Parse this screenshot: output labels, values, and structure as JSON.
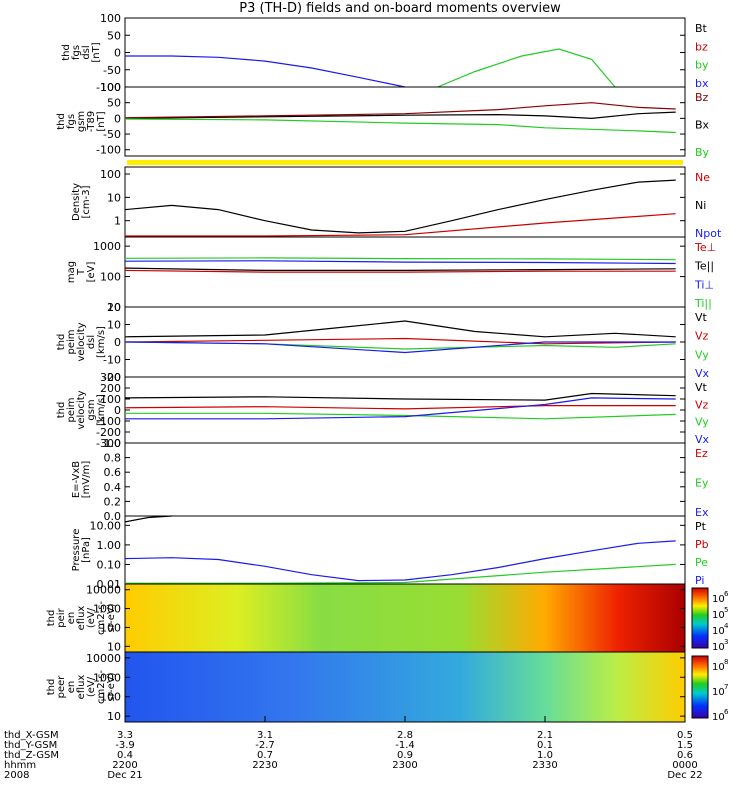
{
  "title": "P3 (TH-D) fields and on-board moments overview",
  "colors": {
    "black": "#000000",
    "red": "#cc0000",
    "green": "#22cc22",
    "blue": "#1a1aee",
    "darkred": "#8b0000",
    "yellow": "#ffee00"
  },
  "panels": [
    {
      "id": "fgs-dsl",
      "ylabel": [
        "thd",
        "fgs",
        "dsl",
        "[nT]"
      ],
      "yticks": [
        "100",
        "50",
        "0",
        "-50",
        "-100"
      ],
      "ylim": [
        -100,
        100
      ],
      "legend": [
        {
          "label": "Bt",
          "color": "black"
        },
        {
          "label": "bz",
          "color": "red"
        },
        {
          "label": "by",
          "color": "green"
        },
        {
          "label": "bx",
          "color": "blue"
        }
      ]
    },
    {
      "id": "fgs-gsm",
      "ylabel": [
        "thd",
        "fgs",
        "gsm",
        "-T89",
        "[nT]"
      ],
      "yticks": [
        "100",
        "50",
        "0",
        "-50",
        "-100"
      ],
      "ylim": [
        -120,
        100
      ],
      "legend": [
        {
          "label": "Bz",
          "color": "darkred"
        },
        {
          "label": "Bx",
          "color": "black"
        },
        {
          "label": "By",
          "color": "green"
        }
      ]
    },
    {
      "id": "density",
      "ylabel": [
        "Density",
        "[cm-3]"
      ],
      "yticks": [
        "100",
        "10",
        "1"
      ],
      "ylim": [
        0.2,
        200
      ],
      "scale": "log",
      "legend": [
        {
          "label": "Ne",
          "color": "red"
        },
        {
          "label": "Ni",
          "color": "black"
        },
        {
          "label": "Npot",
          "color": "blue"
        }
      ]
    },
    {
      "id": "temperature",
      "ylabel": [
        "mag",
        "T",
        "[eV]"
      ],
      "yticks": [
        "1000",
        "100",
        "10"
      ],
      "ylim": [
        10,
        2000
      ],
      "scale": "log",
      "legend": [
        {
          "label": "Te⊥",
          "color": "red"
        },
        {
          "label": "Te||",
          "color": "black"
        },
        {
          "label": "Ti⊥",
          "color": "blue"
        },
        {
          "label": "Ti||",
          "color": "green"
        }
      ]
    },
    {
      "id": "velocity-dsl",
      "ylabel": [
        "thd",
        "peim",
        "velocity",
        "dsl",
        "[km/s]"
      ],
      "yticks": [
        "20",
        "10",
        "0",
        "-10",
        "-20"
      ],
      "ylim": [
        -20,
        20
      ],
      "legend": [
        {
          "label": "Vt",
          "color": "black"
        },
        {
          "label": "Vz",
          "color": "red"
        },
        {
          "label": "Vy",
          "color": "green"
        },
        {
          "label": "Vx",
          "color": "blue"
        }
      ]
    },
    {
      "id": "velocity-gsm",
      "ylabel": [
        "thd",
        "peim",
        "velocity",
        "gsm",
        "[km/s]"
      ],
      "yticks": [
        "300",
        "200",
        "100",
        "0",
        "-100",
        "-200",
        "-300"
      ],
      "ylim": [
        -300,
        300
      ],
      "legend": [
        {
          "label": "Vt",
          "color": "black"
        },
        {
          "label": "Vz",
          "color": "red"
        },
        {
          "label": "Vy",
          "color": "green"
        },
        {
          "label": "Vx",
          "color": "blue"
        }
      ]
    },
    {
      "id": "efield",
      "ylabel": [
        "E=-VxB",
        "[mV/m]"
      ],
      "yticks": [
        "1.0",
        "0.8",
        "0.6",
        "0.4",
        "0.2",
        "0.0"
      ],
      "ylim": [
        0,
        1
      ],
      "legend": [
        {
          "label": "Ez",
          "color": "red"
        },
        {
          "label": "Ey",
          "color": "green"
        },
        {
          "label": "Ex",
          "color": "blue"
        }
      ]
    },
    {
      "id": "pressure",
      "ylabel": [
        "Pressure",
        "[nPa]"
      ],
      "yticks": [
        "10.00",
        "1.00",
        "0.10",
        "0.01"
      ],
      "ylim": [
        0.01,
        30
      ],
      "scale": "log",
      "legend": [
        {
          "label": "Pt",
          "color": "black"
        },
        {
          "label": "Pb",
          "color": "red"
        },
        {
          "label": "Pe",
          "color": "green"
        },
        {
          "label": "Pi",
          "color": "blue"
        }
      ]
    },
    {
      "id": "peir-eflux",
      "ylabel": [
        "thd",
        "peir",
        "en",
        "eflux",
        "(eV/",
        "cm2-s-",
        "sr-eV)"
      ],
      "yticks": [
        "10000",
        "1000",
        "100",
        "10"
      ],
      "ylim": [
        5,
        20000
      ],
      "scale": "log",
      "colorbar": [
        "10",
        "6",
        "10",
        "5",
        "10",
        "4",
        "10",
        "3"
      ]
    },
    {
      "id": "peer-eflux",
      "ylabel": [
        "thd",
        "peer",
        "en",
        "eflux",
        "(eV/",
        "cm2-s-",
        "sr-eV)"
      ],
      "yticks": [
        "10000",
        "1000",
        "100",
        "10"
      ],
      "ylim": [
        5,
        20000
      ],
      "scale": "log",
      "colorbar": [
        "10",
        "8",
        "10",
        "7",
        "10",
        "6"
      ]
    }
  ],
  "x_axis": {
    "rows": [
      {
        "label": "thd_X-GSM",
        "values": [
          "3.3",
          "3.1",
          "2.8",
          "2.1",
          "0.5"
        ]
      },
      {
        "label": "thd_Y-GSM",
        "values": [
          "-3.9",
          "-2.7",
          "-1.4",
          "0.1",
          "1.5"
        ]
      },
      {
        "label": "thd_Z-GSM",
        "values": [
          "0.4",
          "0.7",
          "0.9",
          "1.0",
          "0.6"
        ]
      },
      {
        "label": "hhmm",
        "values": [
          "2200",
          "2230",
          "2300",
          "2330",
          "0000"
        ]
      },
      {
        "label": "2008",
        "values": [
          "Dec 21",
          "",
          "",
          "",
          "Dec 22"
        ]
      }
    ]
  },
  "chart_data": {
    "type": "line",
    "title": "P3 (TH-D) fields and on-board moments overview",
    "x": [
      "2200",
      "2230",
      "2300",
      "2330",
      "0000"
    ],
    "xlabel": "hhmm",
    "panels": [
      {
        "id": "fgs-dsl",
        "ylim": [
          -100,
          100
        ],
        "series": [
          {
            "name": "bx",
            "x": [
              2200,
              2210,
              2220,
              2230,
              2240,
              2250,
              2300
            ],
            "values": [
              -10,
              -10,
              -14,
              -25,
              -45,
              -72,
              -100
            ]
          },
          {
            "name": "by",
            "x": [
              2307,
              2315,
              2325,
              2333,
              2340,
              2345
            ],
            "values": [
              -100,
              -55,
              -10,
              10,
              -20,
              -100
            ]
          }
        ]
      },
      {
        "id": "fgs-gsm",
        "ylim": [
          -120,
          100
        ],
        "series": [
          {
            "name": "Bx",
            "x": [
              2200,
              2230,
              2300,
              2320,
              2330,
              2340,
              2350,
              2358
            ],
            "values": [
              0,
              5,
              10,
              12,
              8,
              0,
              15,
              20
            ]
          },
          {
            "name": "Bz",
            "x": [
              2200,
              2230,
              2300,
              2320,
              2330,
              2340,
              2350,
              2358
            ],
            "values": [
              2,
              8,
              15,
              28,
              40,
              50,
              35,
              30
            ]
          },
          {
            "name": "By",
            "x": [
              2200,
              2230,
              2300,
              2320,
              2330,
              2340,
              2350,
              2358
            ],
            "values": [
              -2,
              -5,
              -15,
              -20,
              -30,
              -35,
              -40,
              -45
            ]
          }
        ]
      },
      {
        "id": "density",
        "ylim": [
          0.2,
          200
        ],
        "series": [
          {
            "name": "Ni",
            "x": [
              2200,
              2210,
              2220,
              2230,
              2240,
              2250,
              2300,
              2310,
              2320,
              2330,
              2340,
              2350,
              2358
            ],
            "values": [
              3,
              4.5,
              3,
              1,
              0.4,
              0.3,
              0.35,
              1,
              3,
              8,
              20,
              45,
              55
            ]
          },
          {
            "name": "Ne",
            "x": [
              2200,
              2230,
              2300,
              2330,
              2358
            ],
            "values": [
              0.22,
              0.22,
              0.25,
              0.8,
              2
            ]
          }
        ]
      },
      {
        "id": "temperature",
        "ylim": [
          10,
          2000
        ],
        "series": [
          {
            "name": "Ti||",
            "x": [
              2200,
              2230,
              2300,
              2330,
              2358
            ],
            "values": [
              400,
              410,
              390,
              380,
              360
            ]
          },
          {
            "name": "Ti⊥",
            "x": [
              2200,
              2230,
              2300,
              2330,
              2358
            ],
            "values": [
              320,
              330,
              300,
              290,
              270
            ]
          },
          {
            "name": "Te||",
            "x": [
              2200,
              2230,
              2300,
              2330,
              2358
            ],
            "values": [
              190,
              160,
              160,
              170,
              180
            ]
          },
          {
            "name": "Te⊥",
            "x": [
              2200,
              2230,
              2300,
              2330,
              2358
            ],
            "values": [
              160,
              140,
              140,
              150,
              150
            ]
          }
        ]
      },
      {
        "id": "velocity-dsl",
        "ylim": [
          -20,
          20
        ],
        "series": [
          {
            "name": "Vt",
            "x": [
              2200,
              2230,
              2245,
              2300,
              2315,
              2330,
              2345,
              2358
            ],
            "values": [
              3,
              4,
              8,
              12,
              6,
              3,
              5,
              3
            ]
          },
          {
            "name": "Vz",
            "x": [
              2200,
              2230,
              2300,
              2330,
              2358
            ],
            "values": [
              0,
              1,
              2,
              -1,
              0
            ]
          },
          {
            "name": "Vy",
            "x": [
              2200,
              2230,
              2300,
              2330,
              2345,
              2358
            ],
            "values": [
              0,
              -1,
              -4,
              -2,
              -3,
              -1
            ]
          },
          {
            "name": "Vx",
            "x": [
              2200,
              2230,
              2300,
              2330,
              2358
            ],
            "values": [
              0,
              -1,
              -6,
              0,
              0
            ]
          }
        ]
      },
      {
        "id": "velocity-gsm",
        "ylim": [
          -300,
          300
        ],
        "series": [
          {
            "name": "Vt",
            "x": [
              2200,
              2230,
              2300,
              2330,
              2340,
              2358
            ],
            "values": [
              110,
              120,
              100,
              90,
              150,
              130
            ]
          },
          {
            "name": "Vz",
            "x": [
              2200,
              2230,
              2300,
              2330,
              2358
            ],
            "values": [
              20,
              30,
              10,
              40,
              40
            ]
          },
          {
            "name": "Vy",
            "x": [
              2200,
              2230,
              2300,
              2330,
              2358
            ],
            "values": [
              -30,
              -30,
              -50,
              -80,
              -40
            ]
          },
          {
            "name": "Vx",
            "x": [
              2200,
              2230,
              2300,
              2330,
              2340,
              2358
            ],
            "values": [
              -80,
              -80,
              -60,
              50,
              110,
              100
            ]
          }
        ]
      },
      {
        "id": "pressure",
        "ylim": [
          0.01,
          30
        ],
        "series": [
          {
            "name": "Pt",
            "x": [
              2200,
              2205,
              2210
            ],
            "values": [
              15,
              25,
              30
            ]
          },
          {
            "name": "Pi",
            "x": [
              2200,
              2210,
              2220,
              2230,
              2240,
              2250,
              2300,
              2310,
              2320,
              2330,
              2340,
              2350,
              2358
            ],
            "values": [
              0.2,
              0.22,
              0.18,
              0.08,
              0.03,
              0.015,
              0.016,
              0.03,
              0.07,
              0.2,
              0.5,
              1.2,
              1.6
            ]
          },
          {
            "name": "Pe",
            "x": [
              2200,
              2230,
              2300,
              2330,
              2358
            ],
            "values": [
              0.011,
              0.011,
              0.012,
              0.04,
              0.1
            ]
          }
        ]
      }
    ]
  }
}
